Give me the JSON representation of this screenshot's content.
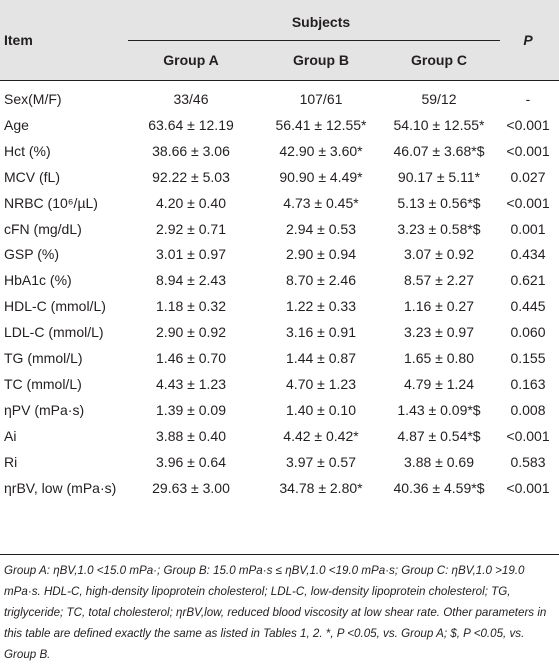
{
  "header": {
    "item": "Item",
    "subjects": "Subjects",
    "p": "P",
    "groups": [
      "Group A",
      "Group B",
      "Group C"
    ]
  },
  "rows": [
    {
      "item": "Sex(M/F)",
      "a": "33/46",
      "b": "107/61",
      "c": "59/12",
      "p": "-"
    },
    {
      "item": "Age",
      "a": "63.64 ± 12.19",
      "b": "56.41 ± 12.55*",
      "c": "54.10 ± 12.55*",
      "p": "<0.001"
    },
    {
      "item": "Hct (%)",
      "a": "38.66 ± 3.06",
      "b": "42.90 ± 3.60*",
      "c": "46.07 ± 3.68*$",
      "p": "<0.001"
    },
    {
      "item": "MCV (fL)",
      "a": "92.22 ± 5.03",
      "b": "90.90 ± 4.49*",
      "c": "90.17 ± 5.11*",
      "p": "0.027"
    },
    {
      "item": "NRBC (10⁶/µL)",
      "a": "4.20 ± 0.40",
      "b": "4.73 ± 0.45*",
      "c": "5.13 ± 0.56*$",
      "p": "<0.001"
    },
    {
      "item": "cFN (mg/dL)",
      "a": "2.92 ± 0.71",
      "b": "2.94 ± 0.53",
      "c": "3.23 ± 0.58*$",
      "p": "0.001"
    },
    {
      "item": "GSP (%)",
      "a": "3.01 ± 0.97",
      "b": "2.90 ± 0.94",
      "c": "3.07 ± 0.92",
      "p": "0.434"
    },
    {
      "item": "HbA1c (%)",
      "a": "8.94 ± 2.43",
      "b": "8.70 ± 2.46",
      "c": "8.57 ± 2.27",
      "p": "0.621"
    },
    {
      "item": "HDL-C (mmol/L)",
      "a": "1.18 ± 0.32",
      "b": "1.22 ± 0.33",
      "c": "1.16 ± 0.27",
      "p": "0.445"
    },
    {
      "item": "LDL-C (mmol/L)",
      "a": "2.90 ± 0.92",
      "b": "3.16 ± 0.91",
      "c": "3.23 ± 0.97",
      "p": "0.060"
    },
    {
      "item": "TG (mmol/L)",
      "a": "1.46 ± 0.70",
      "b": "1.44 ± 0.87",
      "c": "1.65 ± 0.80",
      "p": "0.155"
    },
    {
      "item": "TC (mmol/L)",
      "a": "4.43 ± 1.23",
      "b": "4.70 ± 1.23",
      "c": "4.79 ± 1.24",
      "p": "0.163"
    },
    {
      "item": "ηPV (mPa·s)",
      "a": "1.39 ± 0.09",
      "b": "1.40 ± 0.10",
      "c": "1.43 ± 0.09*$",
      "p": "0.008"
    },
    {
      "item": "Ai",
      "a": "3.88 ± 0.40",
      "b": "4.42 ± 0.42*",
      "c": "4.87 ± 0.54*$",
      "p": "<0.001"
    },
    {
      "item": "Ri",
      "a": "3.96 ± 0.64",
      "b": "3.97 ± 0.57",
      "c": "3.88 ± 0.69",
      "p": "0.583"
    },
    {
      "item": "ηrBV, low (mPa·s)",
      "a": "29.63 ± 3.00",
      "b": "34.78 ± 2.80*",
      "c": "40.36 ± 4.59*$",
      "p": "<0.001"
    }
  ],
  "footnote": "Group A: ηBV,1.0 <15.0 mPa·; Group B: 15.0 mPa·s ≤ ηBV,1.0 <19.0 mPa·s; Group C: ηBV,1.0 >19.0 mPa·s. HDL-C, high-density lipoprotein cholesterol; LDL-C, low-density lipoprotein cholesterol; TG, triglyceride; TC, total cholesterol; ηrBV,low, reduced blood viscosity at low shear rate. Other parameters in this table are defined exactly the same as listed in Tables 1, 2. *, P <0.05, vs. Group A; $, P <0.05, vs. Group B."
}
